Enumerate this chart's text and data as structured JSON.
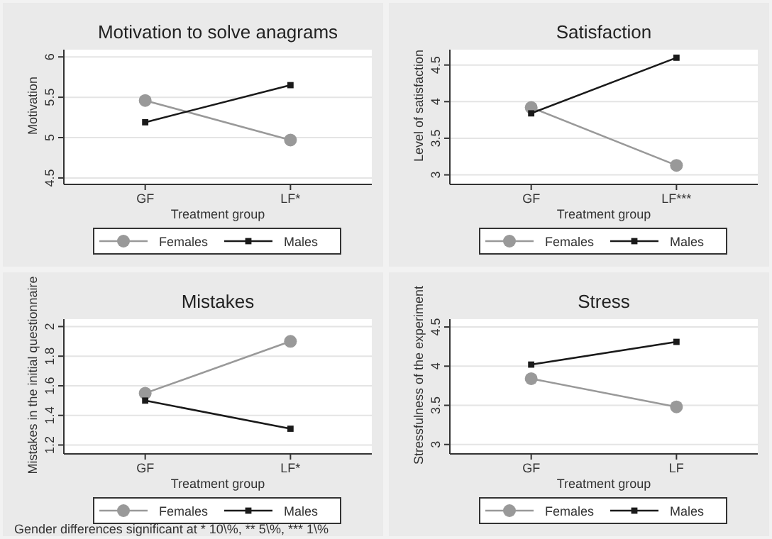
{
  "chart_data": [
    {
      "type": "line",
      "title": "Motivation to solve anagrams",
      "xlabel": "Treatment group",
      "ylabel": "Motivation",
      "categories": [
        "GF",
        "LF*"
      ],
      "ylim": [
        4.42,
        6.09
      ],
      "yticks": [
        4.5,
        5,
        5.5,
        6
      ],
      "grid": "y",
      "legend": "bottom",
      "series": [
        {
          "name": "Females",
          "color": "#999999",
          "marker": "circle",
          "values": [
            5.46,
            4.97
          ]
        },
        {
          "name": "Males",
          "color": "#1a1a1a",
          "marker": "square",
          "values": [
            5.19,
            5.65
          ]
        }
      ]
    },
    {
      "type": "line",
      "title": "Satisfaction",
      "xlabel": "Treatment group",
      "ylabel": "Level of satisfaction",
      "categories": [
        "GF",
        "LF***"
      ],
      "ylim": [
        2.87,
        4.71
      ],
      "yticks": [
        3,
        3.5,
        4,
        4.5
      ],
      "grid": "y",
      "legend": "bottom",
      "series": [
        {
          "name": "Females",
          "color": "#999999",
          "marker": "circle",
          "values": [
            3.92,
            3.13
          ]
        },
        {
          "name": "Males",
          "color": "#1a1a1a",
          "marker": "square",
          "values": [
            3.84,
            4.6
          ]
        }
      ]
    },
    {
      "type": "line",
      "title": "Mistakes",
      "xlabel": "Treatment group",
      "ylabel": "Mistakes in the initial questionnaire",
      "categories": [
        "GF",
        "LF*"
      ],
      "ylim": [
        1.14,
        2.05
      ],
      "yticks": [
        1.2,
        1.4,
        1.6,
        1.8,
        2
      ],
      "grid": "y",
      "legend": "bottom",
      "annotations": [
        "Gender differences significant at * 10\\%, ** 5\\%, *** 1\\%"
      ],
      "series": [
        {
          "name": "Females",
          "color": "#999999",
          "marker": "circle",
          "values": [
            1.55,
            1.9
          ]
        },
        {
          "name": "Males",
          "color": "#1a1a1a",
          "marker": "square",
          "values": [
            1.5,
            1.31
          ]
        }
      ]
    },
    {
      "type": "line",
      "title": "Stress",
      "xlabel": "Treatment group",
      "ylabel": "Stressfulness of the experiment",
      "categories": [
        "GF",
        "LF"
      ],
      "ylim": [
        2.88,
        4.6
      ],
      "yticks": [
        3,
        3.5,
        4,
        4.5
      ],
      "grid": "y",
      "legend": "bottom",
      "series": [
        {
          "name": "Females",
          "color": "#999999",
          "marker": "circle",
          "values": [
            3.84,
            3.48
          ]
        },
        {
          "name": "Males",
          "color": "#1a1a1a",
          "marker": "square",
          "values": [
            4.02,
            4.31
          ]
        }
      ]
    }
  ]
}
